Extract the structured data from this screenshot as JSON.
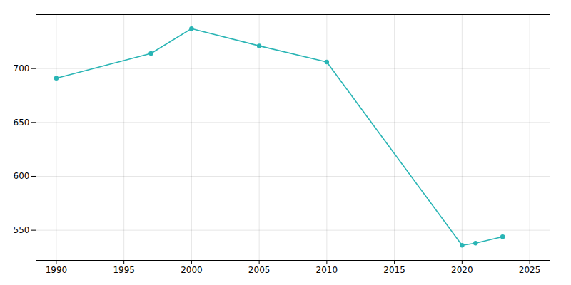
{
  "chart_data": {
    "type": "line",
    "x": [
      1990,
      1997,
      2000,
      2005,
      2010,
      2020,
      2021,
      2023
    ],
    "values": [
      691,
      714,
      737,
      721,
      706,
      536,
      538,
      544
    ],
    "color": "#2ab5b5",
    "marker": "circle",
    "xlim": [
      1988.5,
      2026.5
    ],
    "ylim": [
      522,
      750
    ],
    "xticks": [
      1990,
      1995,
      2000,
      2005,
      2010,
      2015,
      2020,
      2025
    ],
    "yticks": [
      550,
      600,
      650,
      700
    ],
    "grid": true
  }
}
